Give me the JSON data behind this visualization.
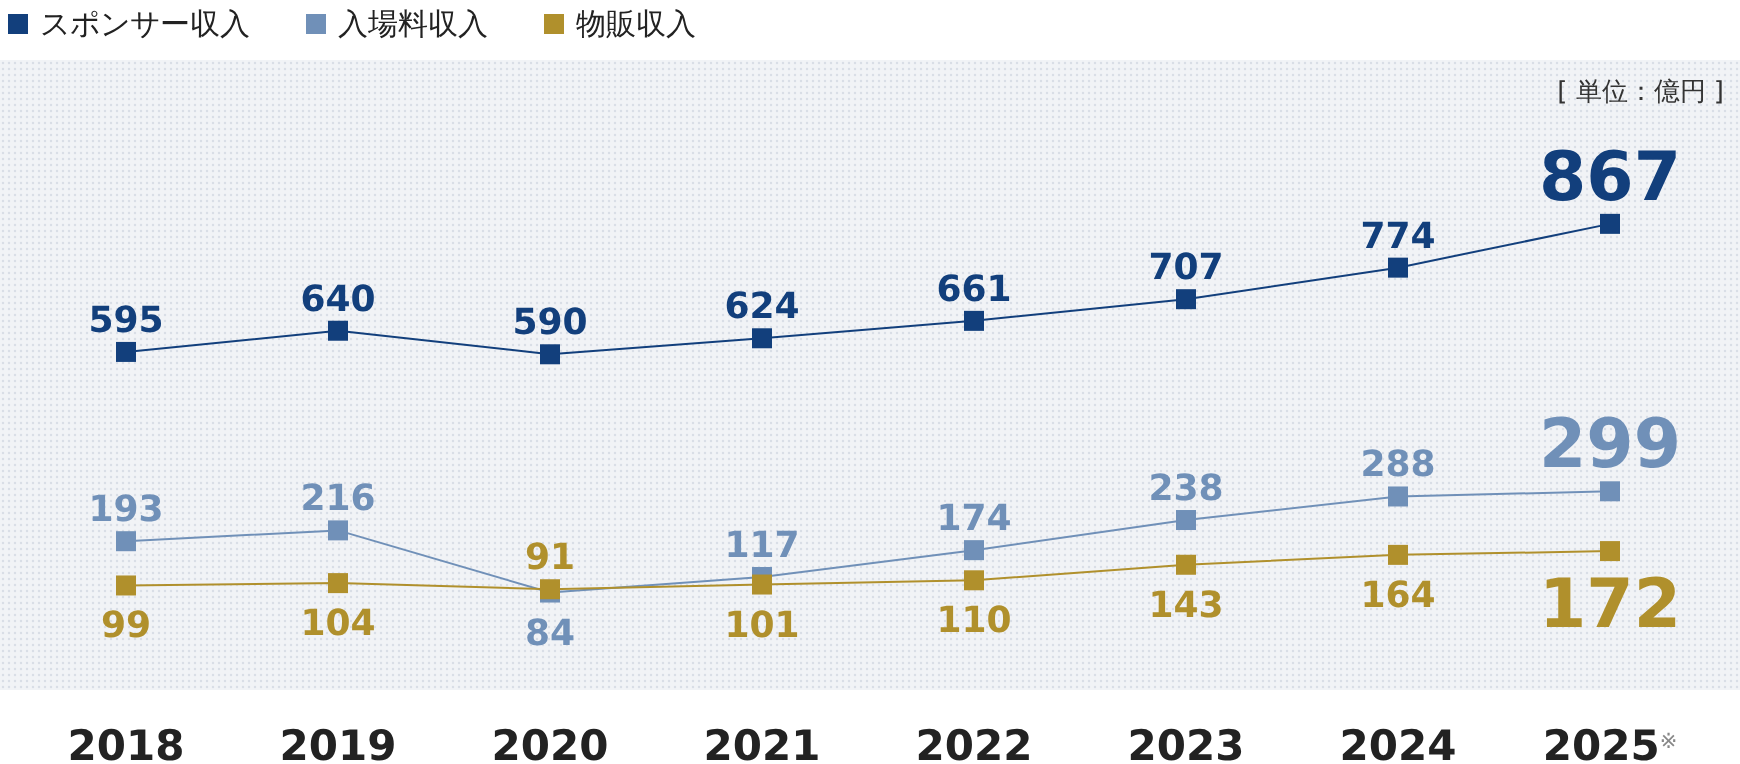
{
  "chart_data": {
    "type": "line",
    "categories": [
      "2018",
      "2019",
      "2020",
      "2021",
      "2022",
      "2023",
      "2024",
      "2025$^{※}$"
    ],
    "series": [
      {
        "name": "スポンサー収入",
        "color": "#123f7c",
        "values": [
          595,
          640,
          590,
          624,
          661,
          707,
          774,
          867
        ]
      },
      {
        "name": "入場料収入",
        "color": "#7090b8",
        "values": [
          193,
          216,
          84,
          117,
          174,
          238,
          288,
          299
        ]
      },
      {
        "name": "物販収入",
        "color": "#b0902c",
        "values": [
          99,
          104,
          91,
          101,
          110,
          143,
          164,
          172
        ]
      }
    ],
    "ylim": [
      -123,
      1215
    ],
    "data_labels": true,
    "marker": "square",
    "legend": "top left",
    "annotations": [
      "[ 単位：億円 ]"
    ]
  }
}
